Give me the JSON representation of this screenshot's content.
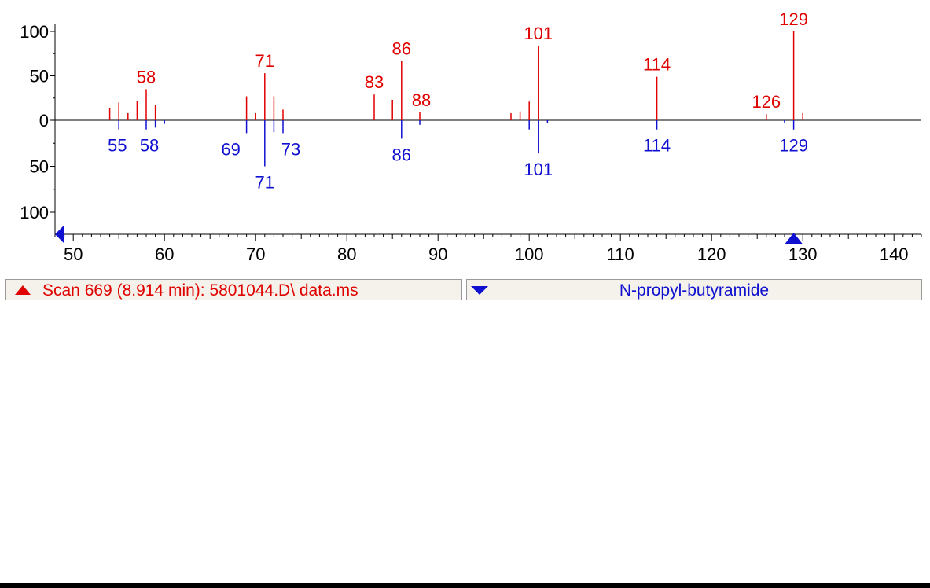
{
  "chart_data": {
    "type": "bar",
    "xlim": [
      48,
      143
    ],
    "ylim": [
      -100,
      100
    ],
    "x_ticks": [
      50,
      60,
      70,
      80,
      90,
      100,
      110,
      120,
      130,
      140
    ],
    "y_tick_labels": [
      "100",
      "50",
      "0",
      "50",
      "100"
    ],
    "grid": false,
    "series": [
      {
        "name": "Scan 669 (8.914 min): 5801044.D\\ data.ms",
        "color": "#e00000",
        "direction": "up",
        "x": [
          54,
          55,
          56,
          57,
          58,
          59,
          69,
          70,
          71,
          72,
          73,
          83,
          85,
          86,
          88,
          98,
          99,
          100,
          101,
          114,
          126,
          129,
          130
        ],
        "values": [
          14,
          20,
          8,
          22,
          35,
          17,
          27,
          8,
          53,
          27,
          12,
          29,
          23,
          67,
          9,
          8,
          10,
          21,
          84,
          49,
          7,
          100,
          8
        ],
        "labels": [
          {
            "x": 58,
            "text": "58"
          },
          {
            "x": 71,
            "text": "71"
          },
          {
            "x": 83,
            "text": "83"
          },
          {
            "x": 86,
            "text": "86"
          },
          {
            "x": 88,
            "text": "88"
          },
          {
            "x": 101,
            "text": "101"
          },
          {
            "x": 114,
            "text": "114"
          },
          {
            "x": 126,
            "text": "126"
          },
          {
            "x": 129,
            "text": "129"
          }
        ]
      },
      {
        "name": "N-propyl-butyramide",
        "color": "#1010d0",
        "direction": "down",
        "x": [
          55,
          58,
          59,
          60,
          69,
          71,
          72,
          73,
          86,
          88,
          100,
          101,
          102,
          114,
          128,
          129
        ],
        "values": [
          10,
          10,
          8,
          4,
          14,
          50,
          13,
          14,
          20,
          5,
          10,
          36,
          3,
          10,
          3,
          10
        ],
        "labels": [
          {
            "x": 55,
            "text": "55"
          },
          {
            "x": 58,
            "text": "58"
          },
          {
            "x": 69,
            "text": "69"
          },
          {
            "x": 71,
            "text": "71"
          },
          {
            "x": 73,
            "text": "73"
          },
          {
            "x": 86,
            "text": "86"
          },
          {
            "x": 101,
            "text": "101"
          },
          {
            "x": 114,
            "text": "114"
          },
          {
            "x": 129,
            "text": "129"
          }
        ]
      }
    ]
  },
  "status": {
    "scan_label": "Scan 669 (8.914 min): 5801044.D\\ data.ms",
    "library_label": "N-propyl-butyramide"
  },
  "colors": {
    "sample": "#e00000",
    "library": "#1010d0",
    "panel": "#f4f2ea"
  },
  "icons": {
    "x_start_marker": "triangle-left-icon",
    "x_end_marker": "triangle-up-icon",
    "sample_marker": "triangle-up-icon",
    "library_marker": "triangle-down-icon"
  }
}
